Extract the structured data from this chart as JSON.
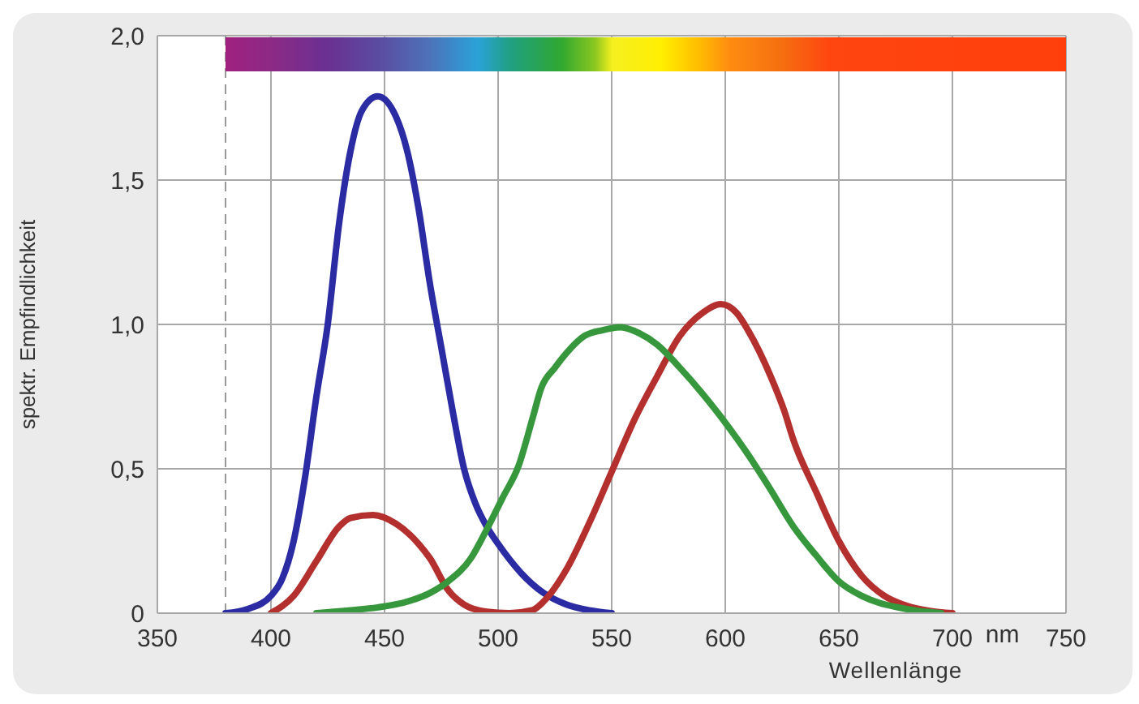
{
  "chart_data": {
    "type": "line",
    "xlabel": "Wellenlänge",
    "ylabel": "spektr. Empfindlichkeit",
    "annotations": [
      "nm"
    ],
    "xlim": [
      350,
      750
    ],
    "xticks": [
      350,
      400,
      450,
      500,
      550,
      600,
      650,
      700,
      750
    ],
    "ylim": [
      0,
      2
    ],
    "yticks": [
      0,
      {
        "value": 0.5,
        "label": "0,5"
      },
      {
        "value": 1,
        "label": "1,0"
      },
      {
        "value": 1.5,
        "label": "1,5"
      },
      {
        "value": 2,
        "label": "2,0"
      }
    ],
    "grid": true,
    "line_style": "solid",
    "marker": "none",
    "ref_lines": [
      {
        "axis": "x",
        "value": 380,
        "line_style": "dashed",
        "color": "#999999"
      }
    ],
    "series": [
      {
        "color": "#2b2ba3",
        "x": [
          380,
          390,
          400,
          405,
          410,
          415,
          420,
          425,
          430,
          435,
          440,
          447,
          455,
          460,
          465,
          470,
          475,
          480,
          485,
          490,
          495,
          500,
          510,
          520,
          530,
          540,
          550
        ],
        "values": [
          0,
          0.015,
          0.06,
          0.12,
          0.25,
          0.47,
          0.75,
          1.0,
          1.35,
          1.6,
          1.74,
          1.79,
          1.72,
          1.6,
          1.4,
          1.14,
          0.92,
          0.7,
          0.5,
          0.38,
          0.3,
          0.24,
          0.14,
          0.07,
          0.03,
          0.01,
          0
        ]
      },
      {
        "color": "#b3302e",
        "x": [
          400,
          410,
          420,
          430,
          435,
          445,
          455,
          465,
          470,
          478,
          485,
          495,
          505,
          515,
          520,
          530,
          540,
          550,
          560,
          570,
          580,
          590,
          598,
          605,
          610,
          620,
          626,
          630,
          640,
          650,
          660,
          670,
          680,
          690,
          700
        ],
        "values": [
          0,
          0.06,
          0.18,
          0.3,
          0.33,
          0.34,
          0.31,
          0.24,
          0.19,
          0.08,
          0.03,
          0.005,
          0,
          0.01,
          0.04,
          0.15,
          0.31,
          0.49,
          0.67,
          0.82,
          0.96,
          1.04,
          1.07,
          1.04,
          0.98,
          0.82,
          0.7,
          0.6,
          0.42,
          0.25,
          0.13,
          0.06,
          0.025,
          0.008,
          0
        ]
      },
      {
        "color": "#36973c",
        "x": [
          420,
          435,
          447,
          460,
          470,
          478,
          488,
          495,
          502,
          509,
          515,
          519,
          525,
          530,
          538,
          546,
          554,
          562,
          570,
          580,
          590,
          600,
          610,
          619,
          630,
          640,
          650,
          660,
          668,
          676,
          685,
          695
        ],
        "values": [
          0,
          0.01,
          0.02,
          0.04,
          0.07,
          0.11,
          0.19,
          0.29,
          0.4,
          0.51,
          0.67,
          0.78,
          0.85,
          0.9,
          0.96,
          0.98,
          0.99,
          0.97,
          0.93,
          0.85,
          0.76,
          0.66,
          0.55,
          0.44,
          0.3,
          0.2,
          0.11,
          0.06,
          0.035,
          0.02,
          0.008,
          0
        ]
      }
    ]
  }
}
